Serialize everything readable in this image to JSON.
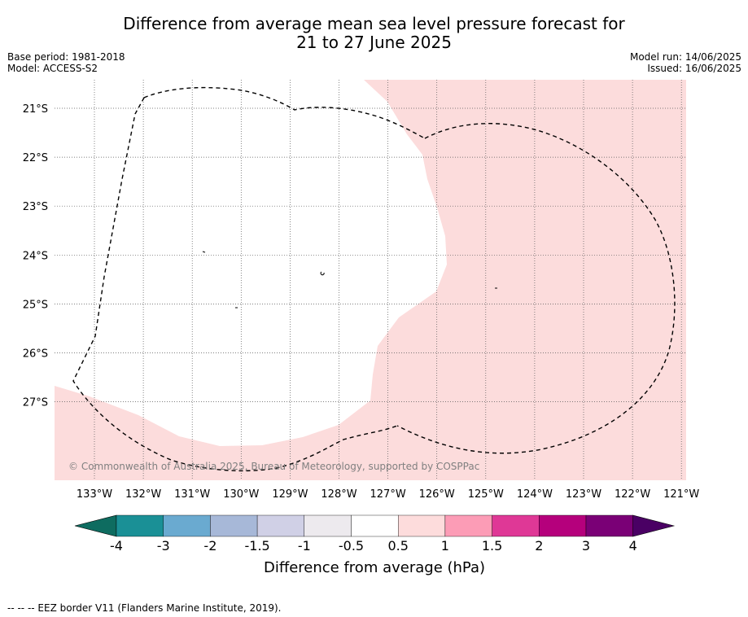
{
  "title": {
    "line1": "Difference from average mean sea level pressure forecast for",
    "line2": "21 to 27 June 2025"
  },
  "meta_left": {
    "base_period": "Base period: 1981-2018",
    "model": "Model: ACCESS-S2"
  },
  "meta_right": {
    "model_run": "Model run: 14/06/2025",
    "issued": "Issued: 16/06/2025"
  },
  "map": {
    "lon_labels": [
      "133°W",
      "132°W",
      "131°W",
      "130°W",
      "129°W",
      "128°W",
      "127°W",
      "126°W",
      "125°W",
      "124°W",
      "123°W",
      "122°W",
      "121°W"
    ],
    "lat_labels": [
      "21°S",
      "22°S",
      "23°S",
      "24°S",
      "25°S",
      "26°S",
      "27°S"
    ],
    "copyright": "© Commonwealth of Australia 2025, Bureau of Meteorology, supported by COSPPac",
    "fill_category": "0.5 to 1 hPa",
    "colors": {
      "pink_fill": "#fcdcdc",
      "white": "#ffffff"
    }
  },
  "colorbar": {
    "tick_labels": [
      "-4",
      "-3",
      "-2",
      "-1.5",
      "-1",
      "-0.5",
      "0.5",
      "1",
      "1.5",
      "2",
      "3",
      "4"
    ],
    "label": "Difference from average (hPa)",
    "colors": [
      "#1a9096",
      "#6aaad0",
      "#a7b8d8",
      "#d0d0e6",
      "#edeaee",
      "#ffffff",
      "#fddcdc",
      "#fc9cb6",
      "#df3896",
      "#b5007c",
      "#7a0076"
    ],
    "extend_low_color": "#0e6c60",
    "extend_high_color": "#4a0064"
  },
  "footer": {
    "legend": "--  --  -- EEZ border V11 (Flanders Marine Institute, 2019)."
  }
}
